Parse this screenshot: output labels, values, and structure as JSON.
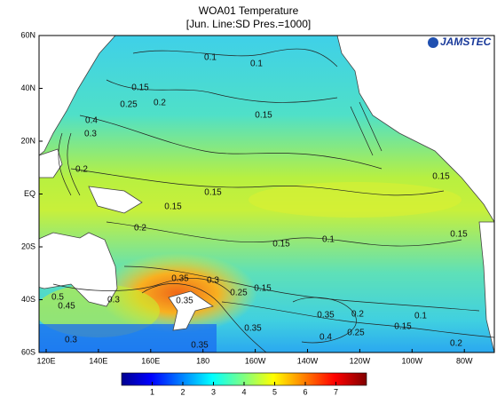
{
  "title": "WOA01 Temperature",
  "subtitle": "[Jun. Line:SD  Pres.=1000]",
  "logo": "JAMSTEC",
  "lat_labels": [
    "60N",
    "40N",
    "20N",
    "EQ",
    "20S",
    "40S",
    "60S"
  ],
  "lon_labels": [
    "120E",
    "140E",
    "160E",
    "180",
    "160W",
    "140W",
    "120W",
    "100W",
    "80W"
  ],
  "colorbar": {
    "range": [
      0,
      8
    ],
    "ticks": [
      1,
      2,
      3,
      4,
      5,
      6,
      7
    ]
  },
  "contour_labels": [
    "0.1",
    "0.1",
    "0.15",
    "0.2",
    "0.25",
    "0.4",
    "0.3",
    "0.15",
    "0.2",
    "0.15",
    "0.15",
    "0.2",
    "0.15",
    "0.1",
    "0.15",
    "0.15",
    "0.3",
    "0.35",
    "0.35",
    "0.25",
    "0.15",
    "0.1",
    "0.15",
    "0.2",
    "0.35",
    "0.4",
    "0.25",
    "0.2",
    "0.35",
    "0.35",
    "0.45",
    "0.3",
    "0.5",
    "0.3"
  ]
}
